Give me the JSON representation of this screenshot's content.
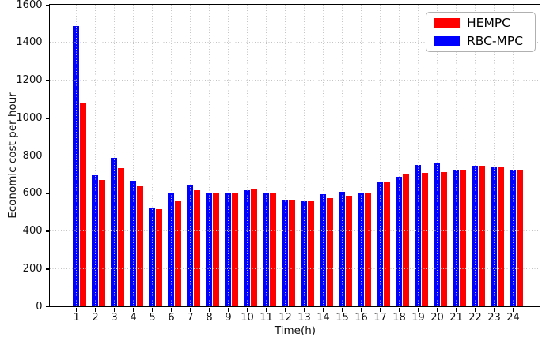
{
  "chart_data": {
    "type": "bar",
    "title": "",
    "xlabel": "Time(h)",
    "ylabel": "Economic cost per hour",
    "categories": [
      1,
      2,
      3,
      4,
      5,
      6,
      7,
      8,
      9,
      10,
      11,
      12,
      13,
      14,
      15,
      16,
      17,
      18,
      19,
      20,
      21,
      22,
      23,
      24
    ],
    "series": [
      {
        "name": "HEMPC",
        "color": "#ff0000",
        "values": [
          1075,
          672,
          735,
          638,
          515,
          558,
          616,
          597,
          600,
          620,
          601,
          560,
          559,
          574,
          588,
          601,
          661,
          700,
          708,
          713,
          721,
          747,
          738,
          721
        ]
      },
      {
        "name": "RBC-MPC",
        "color": "#0000ff",
        "values": [
          1485,
          697,
          787,
          668,
          525,
          597,
          639,
          603,
          603,
          616,
          604,
          561,
          558,
          595,
          607,
          602,
          662,
          688,
          750,
          762,
          722,
          745,
          736,
          719
        ]
      }
    ],
    "ylim": [
      0,
      1600
    ],
    "yticks": [
      0,
      200,
      400,
      600,
      800,
      1000,
      1200,
      1400,
      1600
    ],
    "grid": {
      "style": "dotted",
      "color": "#c3c3c3",
      "x": true,
      "y": true
    },
    "legend": {
      "position": "upper right"
    },
    "bar_arrangement": "RBC-MPC bar centered on tick, HEMPC bar immediately right"
  }
}
